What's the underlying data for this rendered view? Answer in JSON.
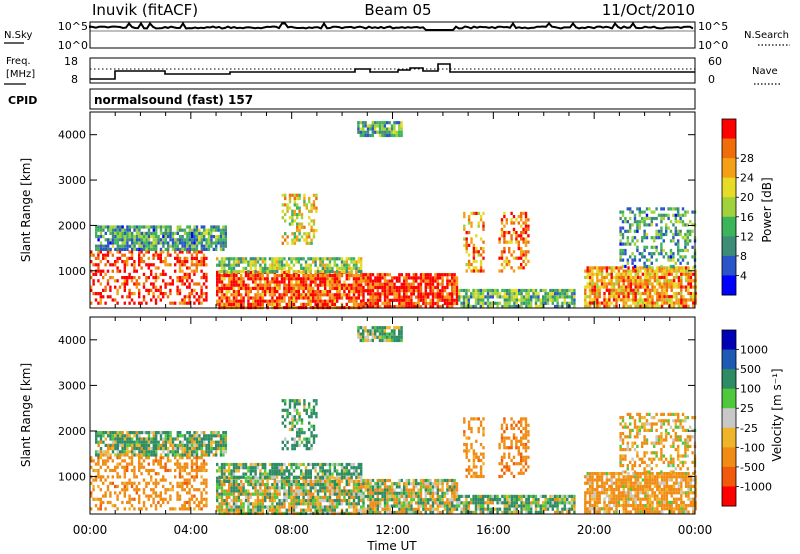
{
  "header": {
    "station": "Inuvik (fitACF)",
    "beam": "Beam 05",
    "date": "11/Oct/2010"
  },
  "noise_panel": {
    "left_label": "N.Sky",
    "left_ticks": [
      "10^5",
      "10^0"
    ],
    "right_ticks": [
      "10^5",
      "10^0"
    ],
    "right_label": "N.Search"
  },
  "freq_panel": {
    "left_label_1": "Freq.",
    "left_label_2": "[MHz]",
    "left_ticks": [
      "18",
      "8"
    ],
    "right_ticks": [
      "60",
      "0"
    ],
    "right_label": "Nave"
  },
  "cpid": {
    "label": "CPID",
    "value": "normalsound (fast) 157"
  },
  "colors": {
    "power_scale": [
      "#0000ff",
      "#2a55c8",
      "#3c8c78",
      "#3cb45a",
      "#a0d23c",
      "#e6dc28",
      "#f5a014",
      "#f06e0a",
      "#ff0000"
    ],
    "velocity_scale": [
      "#0000b4",
      "#1e5ab4",
      "#2d8c64",
      "#50c83c",
      "#c8c8c8",
      "#f0b428",
      "#f08c14",
      "#f05a0a",
      "#ff0000"
    ],
    "velocity_gs": "#bebebe"
  },
  "chart_data": [
    {
      "type": "heatmap",
      "panel": "power",
      "xlabel": "",
      "ylabel": "Slant Range [km]",
      "x_ticks": [
        "00:00",
        "04:00",
        "08:00",
        "12:00",
        "16:00",
        "20:00",
        "00:00"
      ],
      "xlim_hours": [
        0,
        24
      ],
      "y_ticks": [
        "1000",
        "2000",
        "3000",
        "4000"
      ],
      "ylim": [
        180,
        4500
      ],
      "colorbar": {
        "label": "Power [dB]",
        "ticks": [
          "4",
          "8",
          "12",
          "16",
          "20",
          "24",
          "28"
        ],
        "range": [
          0,
          30
        ]
      },
      "echo_regions": [
        {
          "t0": 0.0,
          "t1": 4.6,
          "r0": 300,
          "r1": 1450,
          "value": 28
        },
        {
          "t0": 0.2,
          "t1": 5.4,
          "r0": 1450,
          "r1": 2000,
          "value": 10
        },
        {
          "t0": 5.0,
          "t1": 10.8,
          "r0": 200,
          "r1": 1000,
          "value": 26
        },
        {
          "t0": 5.0,
          "t1": 10.8,
          "r0": 1000,
          "r1": 1300,
          "value": 14
        },
        {
          "t0": 7.6,
          "t1": 9.0,
          "r0": 1600,
          "r1": 2700,
          "value": 18
        },
        {
          "t0": 10.8,
          "t1": 14.6,
          "r0": 200,
          "r1": 950,
          "value": 28
        },
        {
          "t0": 10.6,
          "t1": 12.4,
          "r0": 4000,
          "r1": 4300,
          "value": 12
        },
        {
          "t0": 14.6,
          "t1": 19.2,
          "r0": 200,
          "r1": 600,
          "value": 12
        },
        {
          "t0": 14.8,
          "t1": 15.6,
          "r0": 1000,
          "r1": 2300,
          "value": 22
        },
        {
          "t0": 16.2,
          "t1": 17.4,
          "r0": 1000,
          "r1": 2300,
          "value": 24
        },
        {
          "t0": 19.6,
          "t1": 24.0,
          "r0": 250,
          "r1": 1100,
          "value": 22
        },
        {
          "t0": 21.0,
          "t1": 24.0,
          "r0": 1100,
          "r1": 2400,
          "value": 10
        }
      ]
    },
    {
      "type": "heatmap",
      "panel": "velocity",
      "xlabel": "Time UT",
      "ylabel": "Slant Range [km]",
      "x_ticks": [
        "00:00",
        "04:00",
        "08:00",
        "12:00",
        "16:00",
        "20:00",
        "00:00"
      ],
      "xlim_hours": [
        0,
        24
      ],
      "y_ticks": [
        "1000",
        "2000",
        "3000",
        "4000"
      ],
      "ylim": [
        180,
        4500
      ],
      "colorbar": {
        "label": "Velocity [m s⁻¹]",
        "ticks": [
          "1000",
          "500",
          "100",
          "25",
          "-25",
          "-100",
          "-500",
          "-1000"
        ],
        "range": [
          -1000,
          1000
        ]
      },
      "echo_regions": [
        {
          "t0": 0.0,
          "t1": 4.6,
          "r0": 300,
          "r1": 1450,
          "value": -300
        },
        {
          "t0": 0.2,
          "t1": 5.4,
          "r0": 1450,
          "r1": 2000,
          "value": 100
        },
        {
          "t0": 5.0,
          "t1": 10.8,
          "r0": 200,
          "r1": 1000,
          "value": 0
        },
        {
          "t0": 5.0,
          "t1": 10.8,
          "r0": 1000,
          "r1": 1300,
          "value": 150
        },
        {
          "t0": 7.6,
          "t1": 9.0,
          "r0": 1600,
          "r1": 2700,
          "value": 200
        },
        {
          "t0": 10.8,
          "t1": 14.6,
          "r0": 200,
          "r1": 950,
          "value": 0
        },
        {
          "t0": 10.6,
          "t1": 12.4,
          "r0": 4000,
          "r1": 4300,
          "value": 150
        },
        {
          "t0": 14.6,
          "t1": 19.2,
          "r0": 200,
          "r1": 600,
          "value": 100
        },
        {
          "t0": 14.8,
          "t1": 15.6,
          "r0": 1000,
          "r1": 2300,
          "value": -300
        },
        {
          "t0": 16.2,
          "t1": 17.4,
          "r0": 1000,
          "r1": 2300,
          "value": -400
        },
        {
          "t0": 19.6,
          "t1": 24.0,
          "r0": 250,
          "r1": 1100,
          "value": -200
        },
        {
          "t0": 21.0,
          "t1": 24.0,
          "r0": 1100,
          "r1": 2400,
          "value": -150
        }
      ]
    }
  ]
}
